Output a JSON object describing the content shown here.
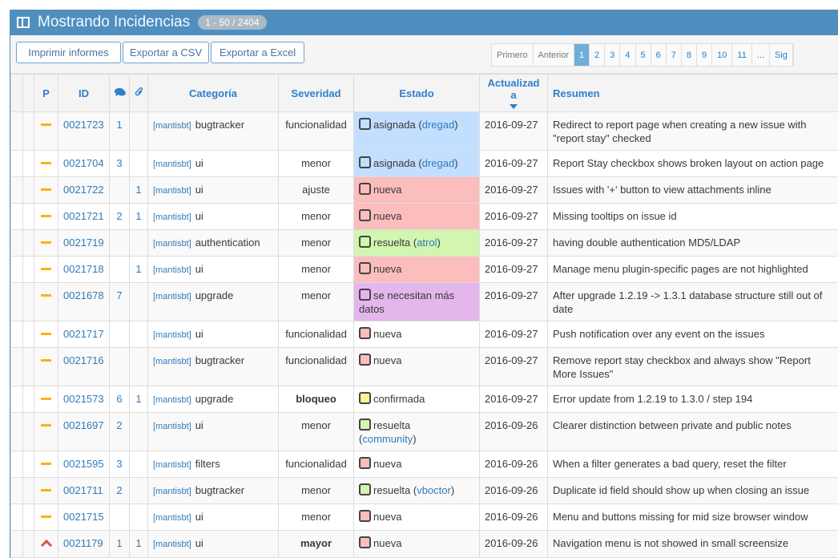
{
  "title": "Mostrando Incidencias",
  "count_badge": "1 - 50 / 2404",
  "buttons": {
    "print": "Imprimir informes",
    "csv": "Exportar a CSV",
    "excel": "Exportar a Excel"
  },
  "pager": [
    "Primero",
    "Anterior",
    "1",
    "2",
    "3",
    "4",
    "5",
    "6",
    "7",
    "8",
    "9",
    "10",
    "11",
    "...",
    "Sig"
  ],
  "pager_current": "1",
  "columns": {
    "priority": "P",
    "id": "ID",
    "category": "Categoría",
    "severity": "Severidad",
    "status": "Estado",
    "updated": "Actualizada",
    "summary": "Resumen"
  },
  "colors": {
    "asignada": "#c2dfff",
    "nueva": "#fcbdbd",
    "resuelta": "#d2f5b0",
    "confirmada": "#fff494",
    "feedback": "#e3b7eb",
    "accent": "#4f8fc0"
  },
  "rows": [
    {
      "pri": "normal",
      "id": "0021723",
      "notes": "1",
      "files": "",
      "project": "[mantisbt]",
      "category": "bugtracker",
      "severity": "funcionalidad",
      "status": "asignada",
      "color": "asignada",
      "handler": "dregad",
      "full": true,
      "date": "2016-09-27",
      "summary": "Redirect to report page when creating a new issue with \"report stay\" checked"
    },
    {
      "pri": "normal",
      "id": "0021704",
      "notes": "3",
      "files": "",
      "project": "[mantisbt]",
      "category": "ui",
      "severity": "menor",
      "status": "asignada",
      "color": "asignada",
      "handler": "dregad",
      "full": true,
      "date": "2016-09-27",
      "summary": "Report Stay checkbox shows broken layout on action page"
    },
    {
      "pri": "normal",
      "id": "0021722",
      "notes": "",
      "files": "1",
      "project": "[mantisbt]",
      "category": "ui",
      "severity": "ajuste",
      "status": "nueva",
      "color": "nueva",
      "handler": "",
      "full": true,
      "date": "2016-09-27",
      "summary": "Issues with '+' button to view attachments inline"
    },
    {
      "pri": "normal",
      "id": "0021721",
      "notes": "2",
      "files": "1",
      "project": "[mantisbt]",
      "category": "ui",
      "severity": "menor",
      "status": "nueva",
      "color": "nueva",
      "handler": "",
      "full": true,
      "date": "2016-09-27",
      "summary": "Missing tooltips on issue id"
    },
    {
      "pri": "normal",
      "id": "0021719",
      "notes": "",
      "files": "",
      "project": "[mantisbt]",
      "category": "authentication",
      "severity": "menor",
      "status": "resuelta",
      "color": "resuelta",
      "handler": "atrol",
      "full": true,
      "date": "2016-09-27",
      "summary": "having double authentication MD5/LDAP"
    },
    {
      "pri": "normal",
      "id": "0021718",
      "notes": "",
      "files": "1",
      "project": "[mantisbt]",
      "category": "ui",
      "severity": "menor",
      "status": "nueva",
      "color": "nueva",
      "handler": "",
      "full": true,
      "date": "2016-09-27",
      "summary": "Manage menu plugin-specific pages are not highlighted"
    },
    {
      "pri": "normal",
      "id": "0021678",
      "notes": "7",
      "files": "",
      "project": "[mantisbt]",
      "category": "upgrade",
      "severity": "menor",
      "status": "se necesitan más datos",
      "color": "feedback",
      "handler": "",
      "full": true,
      "date": "2016-09-27",
      "summary": "After upgrade 1.2.19 -> 1.3.1 database structure still out of date"
    },
    {
      "pri": "normal",
      "id": "0021717",
      "notes": "",
      "files": "",
      "project": "[mantisbt]",
      "category": "ui",
      "severity": "funcionalidad",
      "status": "nueva",
      "color": "nueva",
      "handler": "",
      "full": false,
      "date": "2016-09-27",
      "summary": "Push notification over any event on the issues"
    },
    {
      "pri": "normal",
      "id": "0021716",
      "notes": "",
      "files": "",
      "project": "[mantisbt]",
      "category": "bugtracker",
      "severity": "funcionalidad",
      "status": "nueva",
      "color": "nueva",
      "handler": "",
      "full": false,
      "date": "2016-09-27",
      "summary": "Remove report stay checkbox and always show \"Report More Issues\""
    },
    {
      "pri": "normal",
      "id": "0021573",
      "notes": "6",
      "files": "1",
      "project": "[mantisbt]",
      "category": "upgrade",
      "severity": "bloqueo",
      "bold": true,
      "status": "confirmada",
      "color": "confirmada",
      "handler": "",
      "full": false,
      "date": "2016-09-27",
      "summary": "Error update from 1.2.19 to 1.3.0 / step 194"
    },
    {
      "pri": "normal",
      "id": "0021697",
      "notes": "2",
      "files": "",
      "project": "[mantisbt]",
      "category": "ui",
      "severity": "menor",
      "status": "resuelta",
      "color": "resuelta",
      "handler": "community",
      "full": false,
      "wrap": true,
      "date": "2016-09-26",
      "summary": "Clearer distinction between private and public notes"
    },
    {
      "pri": "normal",
      "id": "0021595",
      "notes": "3",
      "files": "",
      "project": "[mantisbt]",
      "category": "filters",
      "severity": "funcionalidad",
      "status": "nueva",
      "color": "nueva",
      "handler": "",
      "full": false,
      "date": "2016-09-26",
      "summary": "When a filter generates a bad query, reset the filter"
    },
    {
      "pri": "normal",
      "id": "0021711",
      "notes": "2",
      "files": "",
      "project": "[mantisbt]",
      "category": "bugtracker",
      "severity": "menor",
      "status": "resuelta",
      "color": "resuelta",
      "handler": "vboctor",
      "full": false,
      "date": "2016-09-26",
      "summary": "Duplicate id field should show up when closing an issue"
    },
    {
      "pri": "normal",
      "id": "0021715",
      "notes": "",
      "files": "",
      "project": "[mantisbt]",
      "category": "ui",
      "severity": "menor",
      "status": "nueva",
      "color": "nueva",
      "handler": "",
      "full": false,
      "date": "2016-09-26",
      "summary": "Menu and buttons missing for mid size browser window"
    },
    {
      "pri": "high",
      "id": "0021179",
      "notes": "1",
      "files": "1",
      "project": "[mantisbt]",
      "category": "ui",
      "severity": "mayor",
      "bold": true,
      "status": "nueva",
      "color": "nueva",
      "handler": "",
      "full": false,
      "date": "2016-09-26",
      "summary": "Navigation menu is not showed in small screensize"
    }
  ]
}
